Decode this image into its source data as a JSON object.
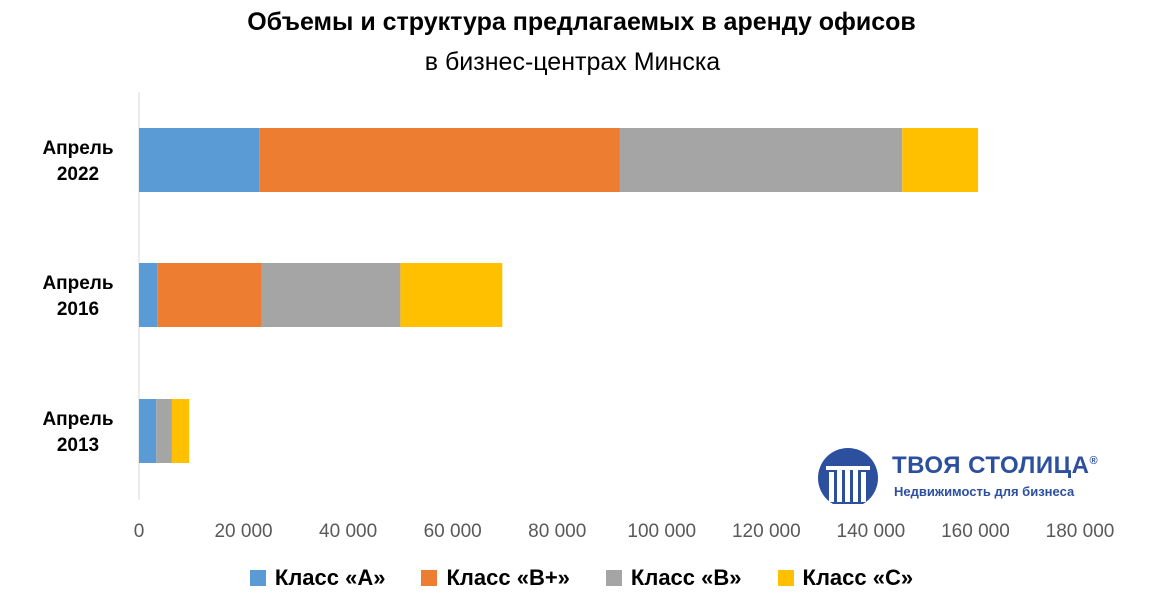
{
  "chart_data": {
    "type": "bar",
    "orientation": "horizontal",
    "stacked": true,
    "title": "Объемы и структура предлагаемых в аренду офисов",
    "subtitle": "в бизнес-центрах Минска",
    "categories": [
      {
        "line1": "Апрель",
        "line2": "2022"
      },
      {
        "line1": "Апрель",
        "line2": "2016"
      },
      {
        "line1": "Апрель",
        "line2": "2013"
      }
    ],
    "series": [
      {
        "name": "Класс «A»",
        "color": "#5b9bd5",
        "values": [
          23000,
          3500,
          3300
        ]
      },
      {
        "name": "Класс «B+»",
        "color": "#ed7d31",
        "values": [
          69000,
          20000,
          0
        ]
      },
      {
        "name": "Класс «B»",
        "color": "#a5a5a5",
        "values": [
          54000,
          26500,
          3000
        ]
      },
      {
        "name": "Класс «C»",
        "color": "#ffc000",
        "values": [
          14500,
          19500,
          3300
        ]
      }
    ],
    "xlim": [
      0,
      180000
    ],
    "ticks": [
      "0",
      "20 000",
      "40 000",
      "60 000",
      "80 000",
      "100 000",
      "120 000",
      "140 000",
      "160 000",
      "180 000"
    ],
    "grid": false,
    "legend_position": "bottom"
  },
  "logo": {
    "name": "ТВОЯ СТОЛИЦА",
    "registered": "®",
    "tagline": "Недвижимость для бизнеса"
  }
}
